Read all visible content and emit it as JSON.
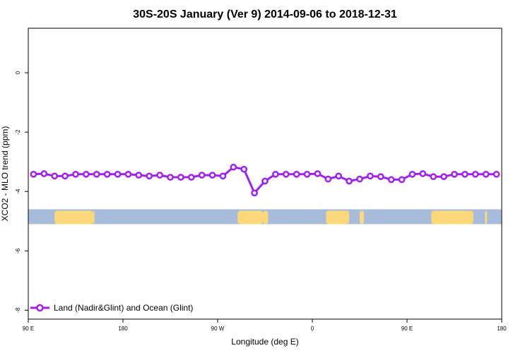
{
  "chart_data": {
    "type": "line",
    "title": "30S-20S January (Ver 9)   2014-09-06 to 2018-12-31",
    "xlabel": "Longitude (deg E)",
    "ylabel": "XCO2 - MLO trend (ppm)",
    "xlim": [
      90,
      540
    ],
    "ylim": [
      -8.3,
      1.5
    ],
    "x_ticks": [
      {
        "value": 90,
        "label": "90 E"
      },
      {
        "value": 180,
        "label": "180"
      },
      {
        "value": 270,
        "label": "90 W"
      },
      {
        "value": 360,
        "label": "0"
      },
      {
        "value": 450,
        "label": "90 E"
      },
      {
        "value": 540,
        "label": "180"
      }
    ],
    "y_ticks": [
      {
        "value": 0,
        "label": "0"
      },
      {
        "value": -2,
        "label": "-2"
      },
      {
        "value": -4,
        "label": "-4"
      },
      {
        "value": -6,
        "label": "-6"
      },
      {
        "value": -8,
        "label": "-8"
      }
    ],
    "grid": false,
    "legend": {
      "position": "bottom-left",
      "entries": [
        "Land (Nadir&Glint) and Ocean (Glint)"
      ]
    },
    "series": [
      {
        "name": "Land (Nadir&Glint) and Ocean (Glint)",
        "color": "#a020f0",
        "x": [
          95,
          105,
          115,
          125,
          135,
          145,
          155,
          165,
          175,
          185,
          195,
          205,
          215,
          225,
          235,
          245,
          255,
          265,
          275,
          285,
          295,
          305,
          315,
          325,
          335,
          345,
          355,
          365,
          375,
          385,
          395,
          405,
          415,
          425,
          435,
          445,
          455,
          465,
          475,
          485,
          495,
          505,
          515,
          525,
          535
        ],
        "values": [
          -3.42,
          -3.4,
          -3.48,
          -3.48,
          -3.42,
          -3.42,
          -3.42,
          -3.42,
          -3.42,
          -3.42,
          -3.45,
          -3.48,
          -3.45,
          -3.52,
          -3.52,
          -3.52,
          -3.45,
          -3.45,
          -3.48,
          -3.18,
          -3.25,
          -4.05,
          -3.65,
          -3.42,
          -3.42,
          -3.42,
          -3.42,
          -3.4,
          -3.58,
          -3.48,
          -3.65,
          -3.58,
          -3.48,
          -3.5,
          -3.6,
          -3.6,
          -3.42,
          -3.4,
          -3.5,
          -3.5,
          -3.42,
          -3.42,
          -3.42,
          -3.42,
          -3.42
        ]
      }
    ],
    "map_strip": {
      "ocean_color": "#a7bbdb",
      "land_color": "#fcd87b",
      "y_range": [
        -5.1,
        -4.6
      ],
      "land_lon_ranges": [
        [
          115,
          152
        ],
        [
          152,
          153
        ],
        [
          289,
          313
        ],
        [
          313,
          318
        ],
        [
          373,
          395
        ],
        [
          405,
          409
        ],
        [
          473,
          513
        ],
        [
          524,
          526
        ]
      ]
    }
  }
}
